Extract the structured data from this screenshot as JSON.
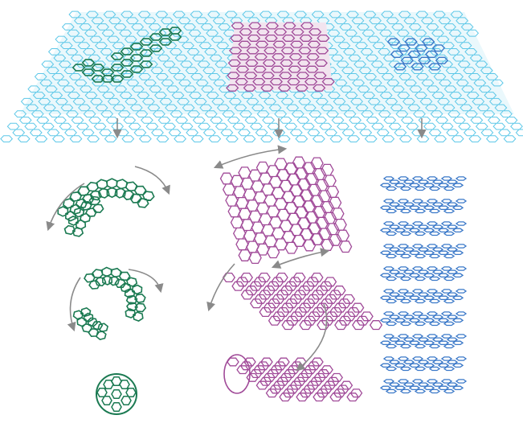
{
  "colors": {
    "sheet": "#5ec8e8",
    "fullerene": "#1b7a52",
    "nanotube": "#a04a98",
    "graphite": "#3a78c8",
    "arrow": "#8a8a8a",
    "background": "#ffffff"
  },
  "icons": {
    "process_arrow": "down-arrow-icon",
    "roll_arrow": "curved-arrow-icon"
  }
}
